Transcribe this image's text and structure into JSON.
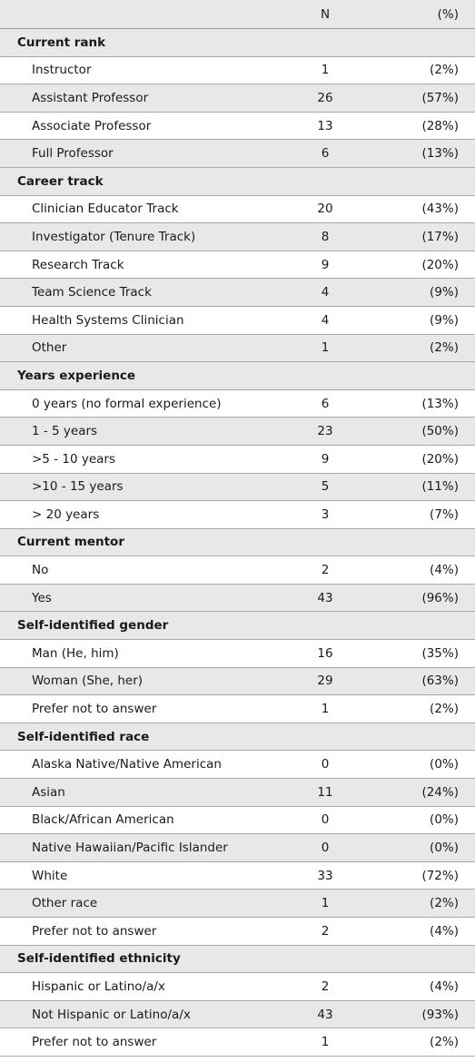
{
  "header": {
    "label": "",
    "n": "N",
    "pct": "(%)"
  },
  "sections": [
    {
      "title": "Current rank",
      "rows": [
        {
          "label": "Instructor",
          "n": "1",
          "pct": "(2%)"
        },
        {
          "label": "Assistant Professor",
          "n": "26",
          "pct": "(57%)"
        },
        {
          "label": "Associate Professor",
          "n": "13",
          "pct": "(28%)"
        },
        {
          "label": "Full Professor",
          "n": "6",
          "pct": "(13%)"
        }
      ]
    },
    {
      "title": "Career track",
      "rows": [
        {
          "label": "Clinician Educator Track",
          "n": "20",
          "pct": "(43%)"
        },
        {
          "label": "Investigator (Tenure Track)",
          "n": "8",
          "pct": "(17%)"
        },
        {
          "label": "Research Track",
          "n": "9",
          "pct": "(20%)"
        },
        {
          "label": "Team Science Track",
          "n": "4",
          "pct": "(9%)"
        },
        {
          "label": "Health Systems Clinician",
          "n": "4",
          "pct": "(9%)"
        },
        {
          "label": "Other",
          "n": "1",
          "pct": "(2%)"
        }
      ]
    },
    {
      "title": "Years experience",
      "rows": [
        {
          "label": "0 years (no formal experience)",
          "n": "6",
          "pct": "(13%)"
        },
        {
          "label": "1 - 5 years",
          "n": "23",
          "pct": "(50%)"
        },
        {
          "label": ">5 - 10 years",
          "n": "9",
          "pct": "(20%)"
        },
        {
          "label": ">10 - 15 years",
          "n": "5",
          "pct": "(11%)"
        },
        {
          "label": "> 20 years",
          "n": "3",
          "pct": "(7%)"
        }
      ]
    },
    {
      "title": "Current mentor",
      "rows": [
        {
          "label": "No",
          "n": "2",
          "pct": "(4%)"
        },
        {
          "label": "Yes",
          "n": "43",
          "pct": "(96%)"
        }
      ]
    },
    {
      "title": "Self-identified gender",
      "rows": [
        {
          "label": "Man (He, him)",
          "n": "16",
          "pct": "(35%)"
        },
        {
          "label": "Woman (She, her)",
          "n": "29",
          "pct": "(63%)"
        },
        {
          "label": "Prefer not to answer",
          "n": "1",
          "pct": "(2%)"
        }
      ]
    },
    {
      "title": "Self-identified race",
      "rows": [
        {
          "label": "Alaska Native/Native American",
          "n": "0",
          "pct": "(0%)"
        },
        {
          "label": "Asian",
          "n": "11",
          "pct": "(24%)"
        },
        {
          "label": "Black/African American",
          "n": "0",
          "pct": "(0%)"
        },
        {
          "label": "Native Hawaiian/Pacific Islander",
          "n": "0",
          "pct": "(0%)"
        },
        {
          "label": "White",
          "n": "33",
          "pct": "(72%)"
        },
        {
          "label": "Other race",
          "n": "1",
          "pct": "(2%)"
        },
        {
          "label": "Prefer not to answer",
          "n": "2",
          "pct": "(4%)"
        }
      ]
    },
    {
      "title": "Self-identified ethnicity",
      "rows": [
        {
          "label": "Hispanic or Latino/a/x",
          "n": "2",
          "pct": "(4%)"
        },
        {
          "label": "Not Hispanic or Latino/a/x",
          "n": "43",
          "pct": "(93%)"
        },
        {
          "label": "Prefer not to answer",
          "n": "1",
          "pct": "(2%)"
        }
      ]
    }
  ]
}
